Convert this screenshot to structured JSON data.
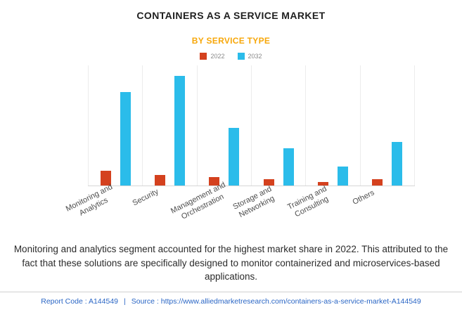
{
  "chart_data": {
    "type": "bar",
    "title": "CONTAINERS AS A SERVICE MARKET",
    "subtitle": "BY SERVICE TYPE",
    "categories": [
      "Monitoring and Analytics",
      "Security",
      "Management and Orchestration",
      "Storage and Networking",
      "Training and Consulting",
      "Others"
    ],
    "series": [
      {
        "name": "2022",
        "color": "#d4411e",
        "values": [
          12,
          9,
          7,
          5,
          3,
          5
        ]
      },
      {
        "name": "2032",
        "color": "#2bbcea",
        "values": [
          78,
          91,
          48,
          31,
          16,
          36
        ]
      }
    ],
    "xlabel": "",
    "ylabel": "",
    "ylim": [
      0,
      100
    ],
    "grid": "vertical-category-lines",
    "legend_position": "top"
  },
  "description": "Monitoring and analytics segment accounted for the highest market share in 2022. This attributed to the fact that these solutions are specifically designed to monitor containerized and microservices-based applications.",
  "footer": {
    "report_code": "Report Code : A144549",
    "separator": "|",
    "source": "Source : https://www.alliedmarketresearch.com/containers-as-a-service-market-A144549"
  }
}
